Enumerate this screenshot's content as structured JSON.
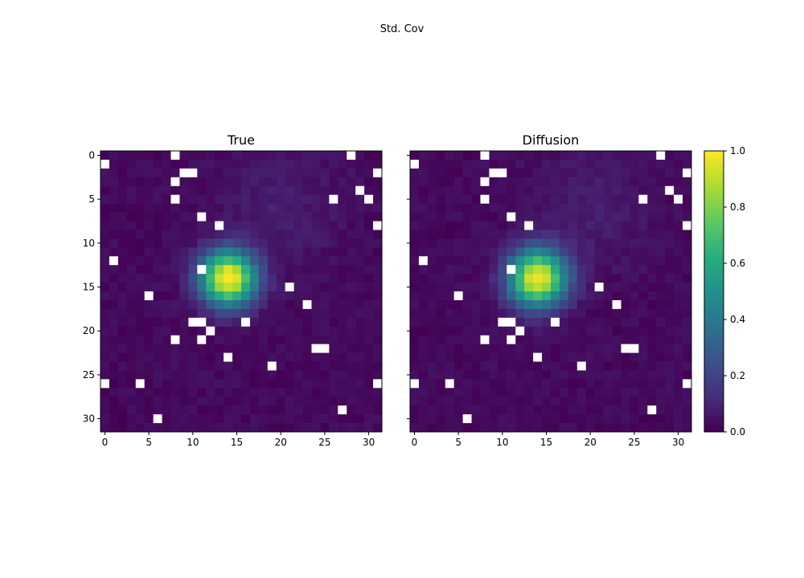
{
  "figure": {
    "suptitle": "Std. Cov"
  },
  "chart_data": [
    {
      "type": "heatmap",
      "title": "True",
      "grid_size": 32,
      "x_ticks": [
        0,
        5,
        10,
        15,
        20,
        25,
        30
      ],
      "y_ticks": [
        0,
        5,
        10,
        15,
        20,
        25,
        30
      ],
      "xlim": [
        -0.5,
        31.5
      ],
      "ylim": [
        31.5,
        -0.5
      ],
      "peak": {
        "row": 14,
        "col": 14,
        "value": 1.0
      },
      "spread": 2.2,
      "missing_cells": [
        [
          0,
          8
        ],
        [
          0,
          28
        ],
        [
          1,
          0
        ],
        [
          2,
          9
        ],
        [
          2,
          10
        ],
        [
          2,
          31
        ],
        [
          3,
          8
        ],
        [
          4,
          29
        ],
        [
          5,
          8
        ],
        [
          5,
          26
        ],
        [
          5,
          30
        ],
        [
          7,
          11
        ],
        [
          8,
          13
        ],
        [
          8,
          31
        ],
        [
          12,
          1
        ],
        [
          13,
          11
        ],
        [
          15,
          21
        ],
        [
          16,
          5
        ],
        [
          17,
          23
        ],
        [
          19,
          10
        ],
        [
          19,
          11
        ],
        [
          19,
          16
        ],
        [
          20,
          12
        ],
        [
          21,
          8
        ],
        [
          21,
          11
        ],
        [
          22,
          24
        ],
        [
          22,
          25
        ],
        [
          23,
          14
        ],
        [
          24,
          19
        ],
        [
          26,
          0
        ],
        [
          26,
          4
        ],
        [
          26,
          31
        ],
        [
          29,
          27
        ],
        [
          30,
          6
        ]
      ]
    },
    {
      "type": "heatmap",
      "title": "Diffusion",
      "grid_size": 32,
      "x_ticks": [
        0,
        5,
        10,
        15,
        20,
        25,
        30
      ],
      "y_ticks": [
        0,
        5,
        10,
        15,
        20,
        25,
        30
      ],
      "xlim": [
        -0.5,
        31.5
      ],
      "ylim": [
        31.5,
        -0.5
      ],
      "peak": {
        "row": 14,
        "col": 14,
        "value": 0.96
      },
      "spread": 2.3,
      "missing_cells": [
        [
          0,
          8
        ],
        [
          0,
          28
        ],
        [
          1,
          0
        ],
        [
          2,
          9
        ],
        [
          2,
          10
        ],
        [
          2,
          31
        ],
        [
          3,
          8
        ],
        [
          4,
          29
        ],
        [
          5,
          8
        ],
        [
          5,
          26
        ],
        [
          5,
          30
        ],
        [
          7,
          11
        ],
        [
          8,
          13
        ],
        [
          8,
          31
        ],
        [
          12,
          1
        ],
        [
          13,
          11
        ],
        [
          15,
          21
        ],
        [
          16,
          5
        ],
        [
          17,
          23
        ],
        [
          19,
          10
        ],
        [
          19,
          11
        ],
        [
          19,
          16
        ],
        [
          20,
          12
        ],
        [
          21,
          8
        ],
        [
          21,
          11
        ],
        [
          22,
          24
        ],
        [
          22,
          25
        ],
        [
          23,
          14
        ],
        [
          24,
          19
        ],
        [
          26,
          0
        ],
        [
          26,
          4
        ],
        [
          26,
          31
        ],
        [
          29,
          27
        ],
        [
          30,
          6
        ]
      ]
    }
  ],
  "colorbar": {
    "min": 0.0,
    "max": 1.0,
    "ticks": [
      "0.0",
      "0.2",
      "0.4",
      "0.6",
      "0.8",
      "1.0"
    ],
    "colormap": "viridis"
  }
}
